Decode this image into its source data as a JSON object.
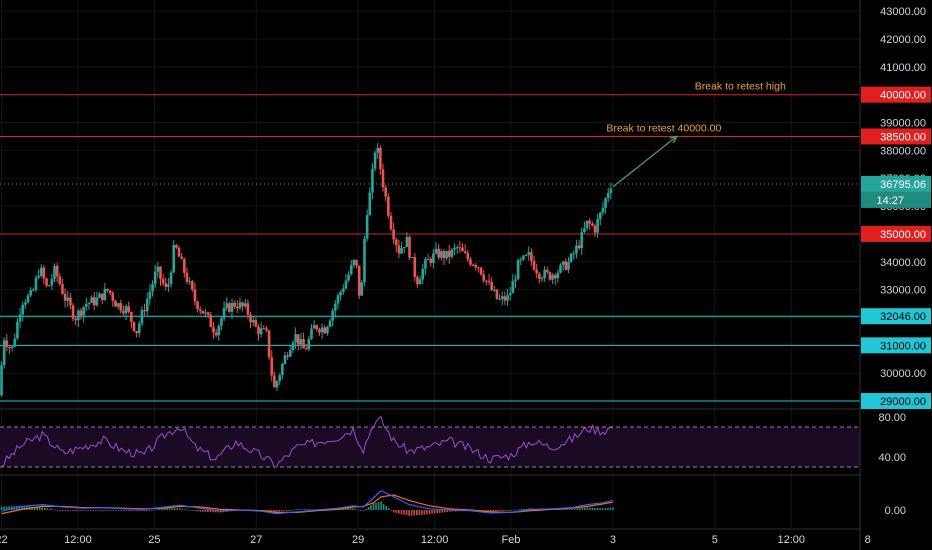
{
  "colors": {
    "background": "#000000",
    "up": "#26a69a",
    "down": "#ef5350",
    "resistance": "#e02020",
    "support": "#22c7d6",
    "last_price": "#26a69a",
    "rsi": "#9c4dcc",
    "macd": "#2962ff",
    "signal": "#ff6d00",
    "annotation": "#f0a030",
    "arrow": "#4caf50"
  },
  "price_axis": {
    "ticks": [
      "43000.00",
      "42000.00",
      "41000.00",
      "40000.00",
      "39000.00",
      "38000.00",
      "37000.00",
      "36000.00",
      "35000.00",
      "34000.00",
      "33000.00",
      "32000.00",
      "31000.00",
      "30000.00",
      "29000.00"
    ],
    "ylim": [
      28750,
      43400
    ]
  },
  "levels": [
    {
      "label": "40000.00",
      "value": 40000,
      "kind": "resistance"
    },
    {
      "label": "38500.00",
      "value": 38500,
      "kind": "resistance"
    },
    {
      "label": "35000.00",
      "value": 35000,
      "kind": "resistance"
    },
    {
      "label": "32046.00",
      "value": 32046,
      "kind": "support"
    },
    {
      "label": "31000.00",
      "value": 31000,
      "kind": "support"
    },
    {
      "label": "29000.00",
      "value": 29000,
      "kind": "support"
    }
  ],
  "last_price": {
    "label": "36795.06",
    "value": 36795.06,
    "countdown": "14:27"
  },
  "annotations": [
    {
      "text": "Break to retest high",
      "anchor_price": 40000,
      "anchor_x": 14.5
    },
    {
      "text": "Break to retest 40000.00",
      "anchor_price": 38500,
      "anchor_x": 13.0
    }
  ],
  "x_axis": {
    "ticks": [
      "22",
      "12:00",
      "25",
      "27",
      "29",
      "12:00",
      "Feb",
      "3",
      "5",
      "12:00",
      "8"
    ],
    "tick_positions": [
      0,
      1.5,
      3,
      5,
      7,
      8.5,
      10,
      12,
      14,
      15.5,
      17
    ],
    "xlim": [
      -0.03,
      16.85
    ]
  },
  "rsi": {
    "ticks": [
      "80.00",
      "40.00"
    ],
    "upper_band": 70,
    "lower_band": 30,
    "ylim": [
      23,
      87
    ]
  },
  "macd": {
    "ticks": [
      "0.00"
    ]
  },
  "chart_data": {
    "type": "candlestick",
    "x_unit": "days from Jan 22",
    "price_series": [
      {
        "x": 0.0,
        "y": 29200
      },
      {
        "x": 0.1,
        "y": 31300
      },
      {
        "x": 0.25,
        "y": 30800
      },
      {
        "x": 0.45,
        "y": 32600
      },
      {
        "x": 0.65,
        "y": 32800
      },
      {
        "x": 0.8,
        "y": 33800
      },
      {
        "x": 0.95,
        "y": 33000
      },
      {
        "x": 1.1,
        "y": 33700
      },
      {
        "x": 1.3,
        "y": 32700
      },
      {
        "x": 1.5,
        "y": 32000
      },
      {
        "x": 1.7,
        "y": 32500
      },
      {
        "x": 1.9,
        "y": 32600
      },
      {
        "x": 2.15,
        "y": 33000
      },
      {
        "x": 2.3,
        "y": 32500
      },
      {
        "x": 2.5,
        "y": 32300
      },
      {
        "x": 2.7,
        "y": 31500
      },
      {
        "x": 2.9,
        "y": 32600
      },
      {
        "x": 3.1,
        "y": 33700
      },
      {
        "x": 3.3,
        "y": 32900
      },
      {
        "x": 3.45,
        "y": 34600
      },
      {
        "x": 3.65,
        "y": 33600
      },
      {
        "x": 3.85,
        "y": 32600
      },
      {
        "x": 4.05,
        "y": 32100
      },
      {
        "x": 4.25,
        "y": 31500
      },
      {
        "x": 4.45,
        "y": 32300
      },
      {
        "x": 4.65,
        "y": 32500
      },
      {
        "x": 4.85,
        "y": 32300
      },
      {
        "x": 5.05,
        "y": 31600
      },
      {
        "x": 5.25,
        "y": 31400
      },
      {
        "x": 5.4,
        "y": 29400
      },
      {
        "x": 5.6,
        "y": 30500
      },
      {
        "x": 5.8,
        "y": 31400
      },
      {
        "x": 6.0,
        "y": 30800
      },
      {
        "x": 6.2,
        "y": 31700
      },
      {
        "x": 6.4,
        "y": 31600
      },
      {
        "x": 6.6,
        "y": 32500
      },
      {
        "x": 6.8,
        "y": 33300
      },
      {
        "x": 7.0,
        "y": 34100
      },
      {
        "x": 7.1,
        "y": 32400
      },
      {
        "x": 7.2,
        "y": 35600
      },
      {
        "x": 7.3,
        "y": 36600
      },
      {
        "x": 7.4,
        "y": 38300
      },
      {
        "x": 7.55,
        "y": 36700
      },
      {
        "x": 7.7,
        "y": 35300
      },
      {
        "x": 7.85,
        "y": 34400
      },
      {
        "x": 8.0,
        "y": 34800
      },
      {
        "x": 8.2,
        "y": 33300
      },
      {
        "x": 8.4,
        "y": 34000
      },
      {
        "x": 8.6,
        "y": 34300
      },
      {
        "x": 8.8,
        "y": 34200
      },
      {
        "x": 9.0,
        "y": 34500
      },
      {
        "x": 9.2,
        "y": 34100
      },
      {
        "x": 9.4,
        "y": 33900
      },
      {
        "x": 9.6,
        "y": 33200
      },
      {
        "x": 9.8,
        "y": 32600
      },
      {
        "x": 10.0,
        "y": 32700
      },
      {
        "x": 10.2,
        "y": 33900
      },
      {
        "x": 10.4,
        "y": 34200
      },
      {
        "x": 10.6,
        "y": 33600
      },
      {
        "x": 10.8,
        "y": 33500
      },
      {
        "x": 11.0,
        "y": 33700
      },
      {
        "x": 11.2,
        "y": 34000
      },
      {
        "x": 11.4,
        "y": 34700
      },
      {
        "x": 11.55,
        "y": 35400
      },
      {
        "x": 11.7,
        "y": 35200
      },
      {
        "x": 11.85,
        "y": 35900
      },
      {
        "x": 12.0,
        "y": 36800
      }
    ],
    "rsi_series": [
      {
        "x": 0.0,
        "y": 32
      },
      {
        "x": 0.4,
        "y": 52
      },
      {
        "x": 0.8,
        "y": 62
      },
      {
        "x": 1.2,
        "y": 44
      },
      {
        "x": 1.6,
        "y": 50
      },
      {
        "x": 2.0,
        "y": 57
      },
      {
        "x": 2.4,
        "y": 46
      },
      {
        "x": 2.8,
        "y": 42
      },
      {
        "x": 3.2,
        "y": 62
      },
      {
        "x": 3.5,
        "y": 71
      },
      {
        "x": 3.8,
        "y": 50
      },
      {
        "x": 4.2,
        "y": 38
      },
      {
        "x": 4.6,
        "y": 55
      },
      {
        "x": 5.0,
        "y": 44
      },
      {
        "x": 5.4,
        "y": 32
      },
      {
        "x": 5.8,
        "y": 50
      },
      {
        "x": 6.2,
        "y": 55
      },
      {
        "x": 6.6,
        "y": 60
      },
      {
        "x": 6.9,
        "y": 68
      },
      {
        "x": 7.1,
        "y": 48
      },
      {
        "x": 7.3,
        "y": 74
      },
      {
        "x": 7.45,
        "y": 77
      },
      {
        "x": 7.7,
        "y": 56
      },
      {
        "x": 8.0,
        "y": 46
      },
      {
        "x": 8.4,
        "y": 50
      },
      {
        "x": 8.8,
        "y": 56
      },
      {
        "x": 9.2,
        "y": 48
      },
      {
        "x": 9.6,
        "y": 38
      },
      {
        "x": 10.0,
        "y": 42
      },
      {
        "x": 10.4,
        "y": 56
      },
      {
        "x": 10.8,
        "y": 50
      },
      {
        "x": 11.2,
        "y": 58
      },
      {
        "x": 11.5,
        "y": 69
      },
      {
        "x": 11.8,
        "y": 66
      },
      {
        "x": 12.0,
        "y": 70
      }
    ],
    "macd_series": [
      {
        "x": 0.0,
        "y": -0.2
      },
      {
        "x": 0.4,
        "y": 0.6
      },
      {
        "x": 0.8,
        "y": 0.9
      },
      {
        "x": 1.2,
        "y": 0.5
      },
      {
        "x": 1.6,
        "y": 0.3
      },
      {
        "x": 2.0,
        "y": 0.4
      },
      {
        "x": 2.4,
        "y": 0.2
      },
      {
        "x": 2.8,
        "y": 0.1
      },
      {
        "x": 3.2,
        "y": 0.5
      },
      {
        "x": 3.5,
        "y": 0.8
      },
      {
        "x": 3.9,
        "y": 0.3
      },
      {
        "x": 4.3,
        "y": -0.2
      },
      {
        "x": 4.7,
        "y": 0.0
      },
      {
        "x": 5.1,
        "y": -0.2
      },
      {
        "x": 5.4,
        "y": -0.6
      },
      {
        "x": 5.8,
        "y": -0.3
      },
      {
        "x": 6.2,
        "y": 0.0
      },
      {
        "x": 6.6,
        "y": 0.3
      },
      {
        "x": 6.9,
        "y": 0.7
      },
      {
        "x": 7.1,
        "y": 0.5
      },
      {
        "x": 7.3,
        "y": 2.0
      },
      {
        "x": 7.45,
        "y": 3.2
      },
      {
        "x": 7.7,
        "y": 2.2
      },
      {
        "x": 8.0,
        "y": 0.9
      },
      {
        "x": 8.4,
        "y": 0.2
      },
      {
        "x": 8.8,
        "y": 0.0
      },
      {
        "x": 9.2,
        "y": -0.1
      },
      {
        "x": 9.6,
        "y": -0.5
      },
      {
        "x": 10.0,
        "y": -0.4
      },
      {
        "x": 10.4,
        "y": 0.1
      },
      {
        "x": 10.8,
        "y": 0.2
      },
      {
        "x": 11.2,
        "y": 0.4
      },
      {
        "x": 11.5,
        "y": 0.9
      },
      {
        "x": 11.8,
        "y": 1.2
      },
      {
        "x": 12.0,
        "y": 1.6
      }
    ],
    "signal_series": [
      {
        "x": 0.0,
        "y": -0.6
      },
      {
        "x": 0.4,
        "y": 0.1
      },
      {
        "x": 0.8,
        "y": 0.6
      },
      {
        "x": 1.2,
        "y": 0.6
      },
      {
        "x": 1.6,
        "y": 0.4
      },
      {
        "x": 2.0,
        "y": 0.4
      },
      {
        "x": 2.4,
        "y": 0.3
      },
      {
        "x": 2.8,
        "y": 0.2
      },
      {
        "x": 3.2,
        "y": 0.3
      },
      {
        "x": 3.5,
        "y": 0.6
      },
      {
        "x": 3.9,
        "y": 0.5
      },
      {
        "x": 4.3,
        "y": 0.1
      },
      {
        "x": 4.7,
        "y": 0.0
      },
      {
        "x": 5.1,
        "y": -0.1
      },
      {
        "x": 5.4,
        "y": -0.4
      },
      {
        "x": 5.8,
        "y": -0.4
      },
      {
        "x": 6.2,
        "y": -0.1
      },
      {
        "x": 6.6,
        "y": 0.1
      },
      {
        "x": 6.9,
        "y": 0.5
      },
      {
        "x": 7.1,
        "y": 0.6
      },
      {
        "x": 7.3,
        "y": 1.2
      },
      {
        "x": 7.45,
        "y": 2.2
      },
      {
        "x": 7.7,
        "y": 2.5
      },
      {
        "x": 8.0,
        "y": 1.6
      },
      {
        "x": 8.4,
        "y": 0.7
      },
      {
        "x": 8.8,
        "y": 0.2
      },
      {
        "x": 9.2,
        "y": 0.0
      },
      {
        "x": 9.6,
        "y": -0.3
      },
      {
        "x": 10.0,
        "y": -0.4
      },
      {
        "x": 10.4,
        "y": -0.1
      },
      {
        "x": 10.8,
        "y": 0.1
      },
      {
        "x": 11.2,
        "y": 0.3
      },
      {
        "x": 11.5,
        "y": 0.6
      },
      {
        "x": 11.8,
        "y": 1.0
      },
      {
        "x": 12.0,
        "y": 1.3
      }
    ]
  }
}
